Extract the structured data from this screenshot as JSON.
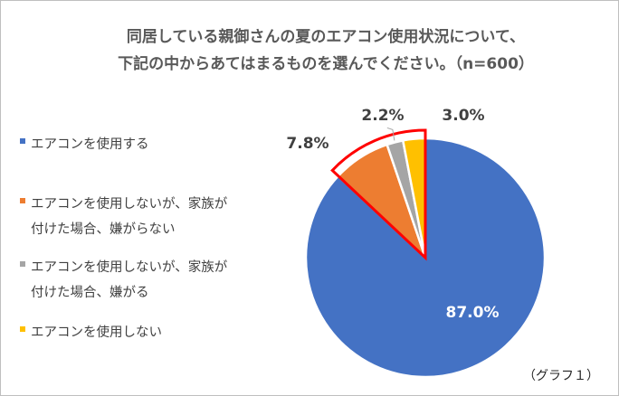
{
  "title": {
    "line1": "同居している親御さんの夏のエアコン使用状況について、",
    "line2": "下記の中からあてはまるものを選んでください。（n=600）"
  },
  "chart_data": {
    "type": "pie",
    "categories": [
      "エアコンを使用する",
      "エアコンを使用しないが、家族が\n付けた場合、嫌がらない",
      "エアコンを使用しないが、家族が\n付けた場合、嫌がる",
      "エアコンを使用しない"
    ],
    "values": [
      87.0,
      7.8,
      2.2,
      3.0
    ],
    "data_labels": [
      "87.0%",
      "7.8%",
      "2.2%",
      "3.0%"
    ],
    "colors": [
      "#4472c4",
      "#ed7d31",
      "#a5a5a5",
      "#ffc000"
    ],
    "highlight_color": "#ff0000",
    "legend_position": "left"
  },
  "caption": "（グラフ１）"
}
